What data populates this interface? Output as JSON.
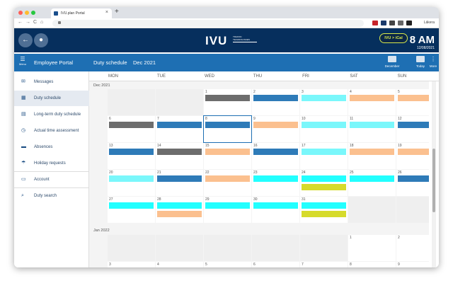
{
  "browser": {
    "tab_title": "IVU.plan Portal",
    "tab_close": "×",
    "newtab": "+",
    "url": "",
    "profile_label": "Läkera",
    "back": "←",
    "forward": "→",
    "reload": "C",
    "home": "⌂",
    "lock": "🔒"
  },
  "header": {
    "logo": "IVU",
    "logo_sub": "TRAFFIC TECHNOLOGIES",
    "ical_label": "IVU > iCal",
    "time": "8 AM",
    "date": "12/08/2021"
  },
  "sidebar": {
    "menu_label": "Menu",
    "title": "Employee Portal",
    "items": [
      {
        "label": "Messages",
        "icon": "✉"
      },
      {
        "label": "Duty schedule",
        "icon": "▦"
      },
      {
        "label": "Long-term duty schedule",
        "icon": "▤"
      },
      {
        "label": "Actual time assessment",
        "icon": "◷"
      },
      {
        "label": "Absences",
        "icon": "▬"
      },
      {
        "label": "Holiday requests",
        "icon": "☂"
      },
      {
        "label": "Account",
        "icon": "▭"
      },
      {
        "label": "Duty search",
        "icon": "⌕"
      }
    ]
  },
  "calendar": {
    "title": "Duty schedule",
    "month": "Dec 2021",
    "toolbar": {
      "december": "December",
      "today": "Today",
      "more": "More"
    },
    "days": [
      "MON",
      "TUE",
      "WED",
      "THU",
      "FRI",
      "SAT",
      "SUN"
    ],
    "colors": {
      "dark": "#6d6d6d",
      "blue": "#2e7bb8",
      "peach": "#fbc08f",
      "cyan": "#7af7fb",
      "cyan2": "#22ffff",
      "yellow": "#d6db2b"
    },
    "dec_label": "Dec 2021",
    "jan_label": "Jan 2022",
    "dec_weeks": [
      [
        {
          "n": "",
          "bars": []
        },
        {
          "n": "",
          "bars": []
        },
        {
          "n": "1",
          "bars": [
            "dark"
          ]
        },
        {
          "n": "2",
          "bars": [
            "blue"
          ]
        },
        {
          "n": "3",
          "bars": [
            "cyan"
          ]
        },
        {
          "n": "4",
          "bars": [
            "peach"
          ]
        },
        {
          "n": "5",
          "bars": [
            "peach"
          ]
        }
      ],
      [
        {
          "n": "6",
          "bars": [
            "dark"
          ]
        },
        {
          "n": "7",
          "bars": [
            "blue"
          ]
        },
        {
          "n": "8",
          "bars": [
            "blue"
          ],
          "sel": true
        },
        {
          "n": "9",
          "bars": [
            "peach"
          ]
        },
        {
          "n": "10",
          "bars": [
            "cyan"
          ]
        },
        {
          "n": "11",
          "bars": [
            "cyan"
          ]
        },
        {
          "n": "12",
          "bars": [
            "blue"
          ]
        }
      ],
      [
        {
          "n": "13",
          "bars": [
            "blue"
          ]
        },
        {
          "n": "14",
          "bars": [
            "dark"
          ]
        },
        {
          "n": "15",
          "bars": [
            "peach"
          ]
        },
        {
          "n": "16",
          "bars": [
            "blue"
          ]
        },
        {
          "n": "17",
          "bars": [
            "cyan"
          ]
        },
        {
          "n": "18",
          "bars": [
            "peach"
          ]
        },
        {
          "n": "19",
          "bars": [
            "peach"
          ]
        }
      ],
      [
        {
          "n": "20",
          "bars": [
            "cyan"
          ]
        },
        {
          "n": "21",
          "bars": [
            "blue"
          ]
        },
        {
          "n": "22",
          "bars": [
            "peach"
          ]
        },
        {
          "n": "23",
          "bars": [
            "cyan2"
          ]
        },
        {
          "n": "24",
          "bars": [
            "cyan2",
            "yellow"
          ]
        },
        {
          "n": "25",
          "bars": [
            "cyan2"
          ]
        },
        {
          "n": "26",
          "bars": [
            "blue"
          ]
        }
      ],
      [
        {
          "n": "27",
          "bars": [
            "cyan2"
          ]
        },
        {
          "n": "28",
          "bars": [
            "cyan2",
            "peach"
          ]
        },
        {
          "n": "29",
          "bars": [
            "cyan2"
          ]
        },
        {
          "n": "30",
          "bars": [
            "cyan2"
          ]
        },
        {
          "n": "31",
          "bars": [
            "cyan2",
            "yellow"
          ]
        },
        {
          "n": "",
          "bars": [],
          "blank": true
        },
        {
          "n": "",
          "bars": [],
          "blank": true
        }
      ]
    ],
    "jan_weeks": [
      [
        {
          "n": "",
          "bars": []
        },
        {
          "n": "",
          "bars": []
        },
        {
          "n": "",
          "bars": []
        },
        {
          "n": "",
          "bars": []
        },
        {
          "n": "",
          "bars": []
        },
        {
          "n": "1",
          "bars": []
        },
        {
          "n": "2",
          "bars": []
        }
      ],
      [
        {
          "n": "3",
          "bars": []
        },
        {
          "n": "4",
          "bars": []
        },
        {
          "n": "5",
          "bars": []
        },
        {
          "n": "6",
          "bars": []
        },
        {
          "n": "7",
          "bars": []
        },
        {
          "n": "8",
          "bars": []
        },
        {
          "n": "9",
          "bars": []
        }
      ]
    ]
  }
}
